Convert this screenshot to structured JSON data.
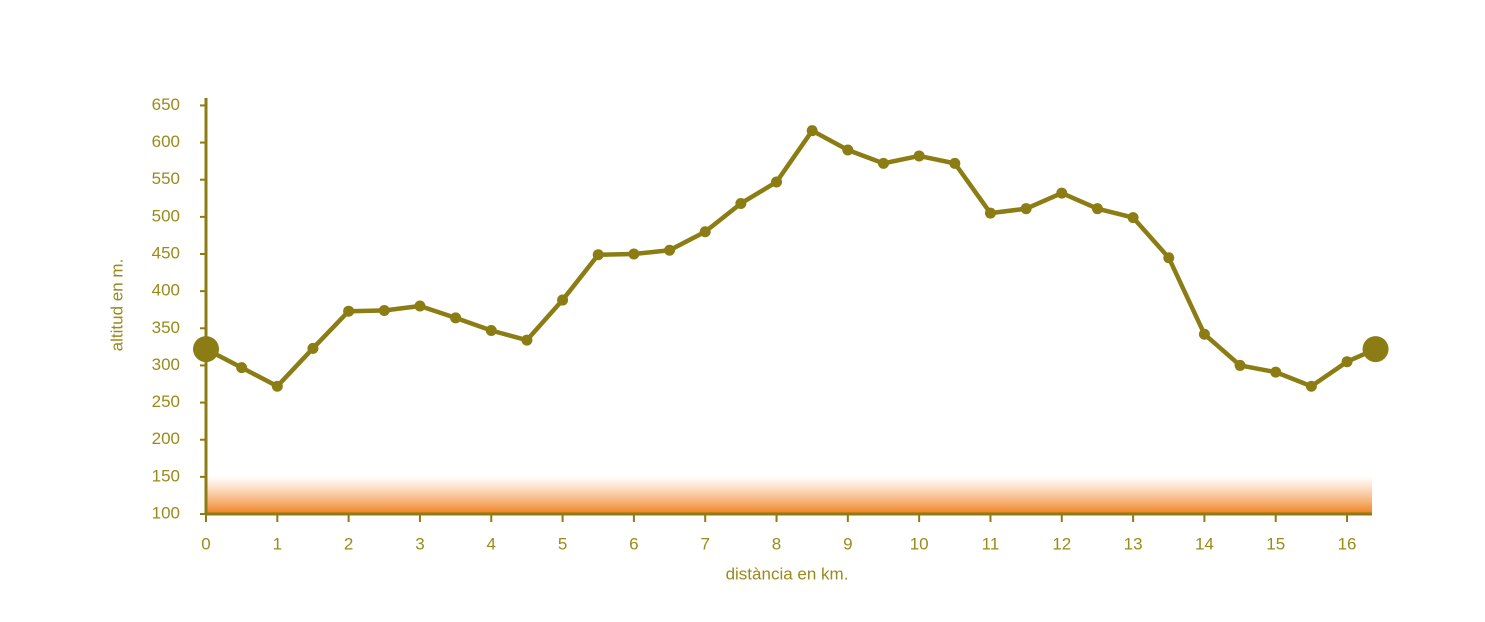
{
  "chart_data": {
    "type": "line",
    "x_label": "distància en km.",
    "y_label": "altitud en m.",
    "x": [
      0,
      0.5,
      1,
      1.5,
      2,
      2.5,
      3,
      3.5,
      4,
      4.5,
      5,
      5.5,
      6,
      6.5,
      7,
      7.5,
      8,
      8.5,
      9,
      9.5,
      10,
      10.5,
      11,
      11.5,
      12,
      12.5,
      13,
      13.5,
      14,
      14.5,
      15,
      15.5,
      16,
      16.4
    ],
    "series": [
      {
        "color": "#8c7c14",
        "values": [
          322,
          297,
          272,
          323,
          373,
          374,
          380,
          364,
          347,
          334,
          388,
          449,
          450,
          455,
          480,
          518,
          547,
          616,
          590,
          572,
          582,
          572,
          505,
          511,
          532,
          511,
          499,
          445,
          342,
          300,
          291,
          272,
          305,
          322
        ]
      }
    ],
    "xlim": [
      0,
      16.35
    ],
    "xticks": [
      0,
      1,
      2,
      3,
      4,
      5,
      6,
      7,
      8,
      9,
      10,
      11,
      12,
      13,
      14,
      15,
      16
    ],
    "ylim": [
      100,
      660
    ],
    "yticks": [
      100,
      150,
      200,
      250,
      300,
      350,
      400,
      450,
      500,
      550,
      600,
      650
    ],
    "grid": false
  }
}
